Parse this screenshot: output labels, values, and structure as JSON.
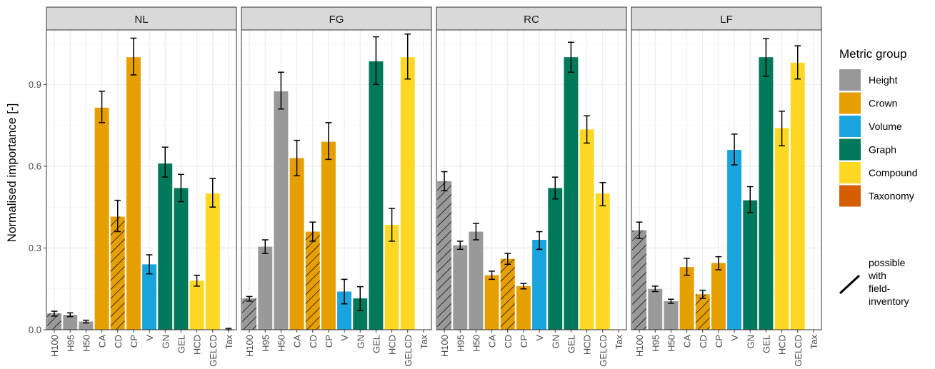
{
  "chart_data": {
    "type": "bar",
    "ylabel": "Normalised importance [-]",
    "ylim": [
      0,
      1.1
    ],
    "yticks": [
      0.0,
      0.3,
      0.6,
      0.9
    ],
    "ytick_labels": [
      "0.0",
      "0.3",
      "0.6",
      "0.9"
    ],
    "categories": [
      "H100",
      "H95",
      "H50",
      "CA",
      "CD",
      "CP",
      "V",
      "GN",
      "GEL",
      "HCD",
      "GELCD",
      "Tax"
    ],
    "groups": [
      "Height",
      "Height",
      "Height",
      "Crown",
      "Crown",
      "Crown",
      "Volume",
      "Graph",
      "Graph",
      "Compound",
      "Compound",
      "Taxonomy"
    ],
    "hatched": [
      true,
      false,
      false,
      false,
      true,
      false,
      false,
      false,
      false,
      false,
      false,
      false
    ],
    "panels": [
      {
        "name": "NL",
        "values": [
          0.06,
          0.055,
          0.03,
          0.815,
          0.415,
          1.0,
          0.24,
          0.61,
          0.52,
          0.18,
          0.5,
          0.0
        ],
        "err_low": [
          0.05,
          0.048,
          0.025,
          0.76,
          0.36,
          0.935,
          0.205,
          0.56,
          0.47,
          0.16,
          0.45,
          0.0
        ],
        "err_high": [
          0.068,
          0.062,
          0.035,
          0.875,
          0.475,
          1.07,
          0.275,
          0.67,
          0.57,
          0.2,
          0.555,
          0.005
        ]
      },
      {
        "name": "FG",
        "values": [
          0.115,
          0.305,
          0.875,
          0.63,
          0.36,
          0.69,
          0.14,
          0.115,
          0.985,
          0.385,
          1.0,
          0.0
        ],
        "err_low": [
          0.105,
          0.28,
          0.81,
          0.565,
          0.325,
          0.625,
          0.095,
          0.07,
          0.9,
          0.325,
          0.92,
          0.0
        ],
        "err_high": [
          0.122,
          0.33,
          0.945,
          0.695,
          0.395,
          0.76,
          0.185,
          0.158,
          1.075,
          0.445,
          1.085,
          0.0
        ]
      },
      {
        "name": "RC",
        "values": [
          0.545,
          0.31,
          0.36,
          0.2,
          0.26,
          0.16,
          0.33,
          0.52,
          1.0,
          0.735,
          0.5,
          0.0
        ],
        "err_low": [
          0.51,
          0.295,
          0.33,
          0.185,
          0.24,
          0.15,
          0.295,
          0.48,
          0.945,
          0.685,
          0.455,
          0.0
        ],
        "err_high": [
          0.58,
          0.325,
          0.39,
          0.215,
          0.28,
          0.17,
          0.36,
          0.56,
          1.055,
          0.785,
          0.54,
          0.0
        ]
      },
      {
        "name": "LF",
        "values": [
          0.365,
          0.15,
          0.105,
          0.23,
          0.13,
          0.245,
          0.66,
          0.475,
          1.0,
          0.74,
          0.98,
          0.0
        ],
        "err_low": [
          0.335,
          0.14,
          0.097,
          0.2,
          0.115,
          0.22,
          0.605,
          0.43,
          0.93,
          0.675,
          0.92,
          0.0
        ],
        "err_high": [
          0.395,
          0.16,
          0.112,
          0.262,
          0.145,
          0.268,
          0.718,
          0.525,
          1.068,
          0.802,
          1.042,
          0.0
        ]
      }
    ],
    "legend": {
      "title": "Metric group",
      "items": [
        {
          "label": "Height",
          "color": "#999999"
        },
        {
          "label": "Crown",
          "color": "#E69F00"
        },
        {
          "label": "Volume",
          "color": "#1AA4DD"
        },
        {
          "label": "Graph",
          "color": "#00785A"
        },
        {
          "label": "Compound",
          "color": "#FFD823"
        },
        {
          "label": "Taxonomy",
          "color": "#D55E00"
        }
      ],
      "hatch_label_lines": [
        "possible",
        "with",
        "field-",
        "inventory"
      ]
    },
    "panel_background": "#ffffff",
    "strip_background": "#d9d9d9",
    "grid": true
  }
}
